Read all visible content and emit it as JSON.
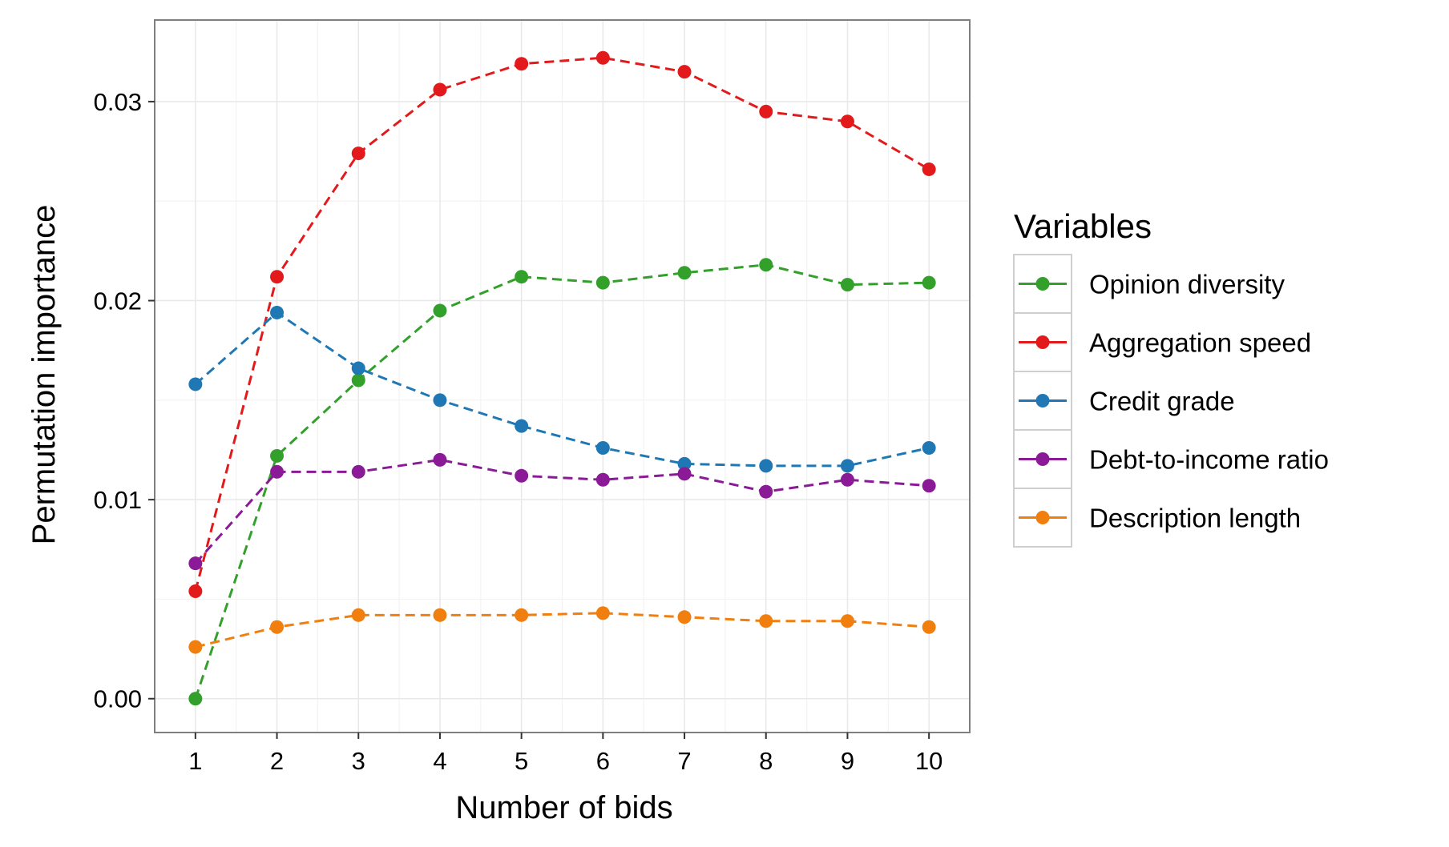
{
  "chart_data": {
    "type": "line",
    "xlabel": "Number of bids",
    "ylabel": "Permutation importance",
    "x": [
      1,
      2,
      3,
      4,
      5,
      6,
      7,
      8,
      9,
      10
    ],
    "xlim": [
      0.5,
      10.5
    ],
    "ylim": [
      -0.0017,
      0.0341
    ],
    "y_ticks": [
      {
        "value": 0,
        "label": "0.00"
      },
      {
        "value": 0.01,
        "label": "0.01"
      },
      {
        "value": 0.02,
        "label": "0.02"
      },
      {
        "value": 0.03,
        "label": "0.03"
      }
    ],
    "x_tick_labels": [
      "1",
      "2",
      "3",
      "4",
      "5",
      "6",
      "7",
      "8",
      "9",
      "10"
    ],
    "grid": true,
    "line_style": "dashed",
    "legend": {
      "title": "Variables",
      "position": "right"
    },
    "series": [
      {
        "name": "Opinion diversity",
        "color": "#33a02c",
        "values": [
          0.0,
          0.0122,
          0.016,
          0.0195,
          0.0212,
          0.0209,
          0.0214,
          0.0218,
          0.0208,
          0.0209
        ]
      },
      {
        "name": "Aggregation speed",
        "color": "#e31a1c",
        "values": [
          0.0054,
          0.0212,
          0.0274,
          0.0306,
          0.0319,
          0.0322,
          0.0315,
          0.0295,
          0.029,
          0.0266
        ]
      },
      {
        "name": "Credit grade",
        "color": "#1f78b4",
        "values": [
          0.0158,
          0.0194,
          0.0166,
          0.015,
          0.0137,
          0.0126,
          0.0118,
          0.0117,
          0.0117,
          0.0126
        ]
      },
      {
        "name": "Debt-to-income ratio",
        "color": "#8b1a97",
        "values": [
          0.0068,
          0.0114,
          0.0114,
          0.012,
          0.0112,
          0.011,
          0.0113,
          0.0104,
          0.011,
          0.0107
        ]
      },
      {
        "name": "Description length",
        "color": "#f07f0f",
        "values": [
          0.0026,
          0.0036,
          0.0042,
          0.0042,
          0.0042,
          0.0043,
          0.0041,
          0.0039,
          0.0039,
          0.0036
        ]
      }
    ]
  }
}
